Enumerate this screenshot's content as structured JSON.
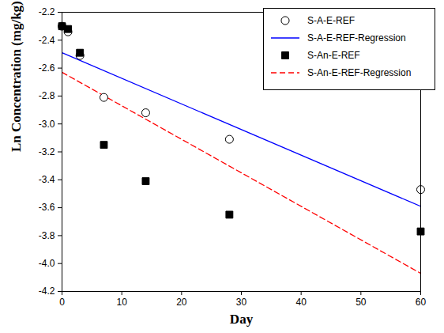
{
  "chart_data": {
    "type": "scatter",
    "xlabel": "Day",
    "ylabel": "Ln Concentration (mg/kg)",
    "xlim": [
      0,
      60
    ],
    "ylim": [
      -4.2,
      -2.2
    ],
    "xticks": [
      0,
      10,
      20,
      30,
      40,
      50,
      60
    ],
    "yticks": [
      -4.2,
      {
        "value": -4,
        "label": "-4.0"
      },
      -3.8,
      -3.6,
      -3.4,
      -3.2,
      {
        "value": -3,
        "label": "-3.0"
      },
      -2.8,
      -2.6,
      -2.4,
      -2.2
    ],
    "grid": false,
    "legend": "upper right",
    "series": [
      {
        "name": "S-A-E-REF",
        "type": "scatter",
        "marker": "open circle",
        "color": "#000000",
        "x": [
          0,
          1,
          3,
          7,
          14,
          28,
          60
        ],
        "values": [
          -2.3,
          -2.34,
          -2.51,
          -2.81,
          -2.92,
          -3.11,
          -3.47
        ]
      },
      {
        "name": "S-A-E-REF-Regression",
        "type": "line",
        "line_style": "solid",
        "color": "#0000ff",
        "x": [
          0,
          60
        ],
        "values": [
          -2.49,
          -3.59
        ]
      },
      {
        "name": "S-An-E-REF",
        "type": "scatter",
        "marker": "filled square",
        "color": "#000000",
        "x": [
          0,
          1,
          3,
          7,
          14,
          28,
          60
        ],
        "values": [
          -2.3,
          -2.32,
          -2.49,
          -3.15,
          -3.41,
          -3.65,
          -3.77
        ]
      },
      {
        "name": "S-An-E-REF-Regression",
        "type": "line",
        "line_style": "dashed",
        "color": "#ff0000",
        "x": [
          0,
          60
        ],
        "values": [
          -2.63,
          -4.07
        ]
      }
    ]
  }
}
